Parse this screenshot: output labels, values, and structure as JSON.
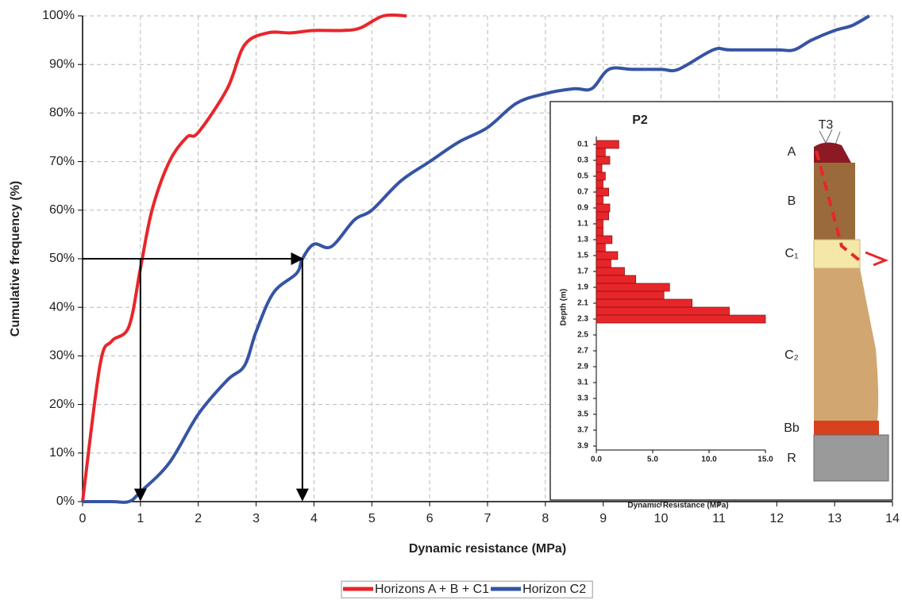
{
  "chart_data": [
    {
      "type": "line",
      "xlabel": "Dynamic resistance (MPa)",
      "ylabel": "Cumulative frequency (%)",
      "xlim": [
        0,
        14
      ],
      "ylim": [
        0,
        100
      ],
      "xticks": [
        0,
        1,
        2,
        3,
        4,
        5,
        6,
        7,
        8,
        9,
        10,
        11,
        12,
        13,
        14
      ],
      "yticks": [
        {
          "value": 0,
          "label": "0%"
        },
        {
          "value": 10,
          "label": "10%"
        },
        {
          "value": 20,
          "label": "20%"
        },
        {
          "value": 30,
          "label": "30%"
        },
        {
          "value": 40,
          "label": "40%"
        },
        {
          "value": 50,
          "label": "50%"
        },
        {
          "value": 60,
          "label": "60%"
        },
        {
          "value": 70,
          "label": "70%"
        },
        {
          "value": 80,
          "label": "80%"
        },
        {
          "value": 90,
          "label": "90%"
        },
        {
          "value": 100,
          "label": "100%"
        }
      ],
      "grid": true,
      "legend": "bottom",
      "series": [
        {
          "name": "Horizons A + B + C1",
          "color": "#e8262a",
          "x": [
            0,
            0.3,
            0.5,
            0.8,
            1,
            1.2,
            1.5,
            1.8,
            2,
            2.5,
            2.8,
            3.2,
            3.6,
            4,
            4.5,
            4.8,
            5.2,
            5.6
          ],
          "values": [
            0,
            28,
            33,
            36,
            48,
            60,
            70,
            75,
            76,
            85,
            94,
            96.5,
            96.5,
            97,
            97,
            97.5,
            100,
            100
          ]
        },
        {
          "name": "Horizon C2",
          "color": "#3654a5",
          "x": [
            0,
            0.5,
            0.8,
            1,
            1.5,
            2,
            2.5,
            2.8,
            3,
            3.3,
            3.7,
            3.8,
            4,
            4.3,
            4.7,
            5,
            5.5,
            6,
            6.5,
            7,
            7.5,
            8,
            8.5,
            8.8,
            9.1,
            9.5,
            10,
            10.3,
            10.9,
            11.2,
            12,
            12.3,
            12.6,
            13,
            13.3,
            13.6
          ],
          "values": [
            0,
            0,
            0,
            2,
            8,
            18,
            25,
            28,
            35,
            43,
            47,
            50,
            53,
            52.5,
            58,
            60,
            66,
            70,
            74,
            77,
            82,
            84,
            85,
            85,
            89,
            89,
            89,
            89,
            93,
            93,
            93,
            93,
            95,
            97,
            98,
            100
          ]
        }
      ],
      "annotations": [
        {
          "x": 1,
          "y": 50
        },
        {
          "x": 3.8,
          "y": 50
        }
      ]
    },
    {
      "type": "hbar",
      "title": "P2",
      "xlabel": "Dynamic Resistance (MPa)",
      "ylabel": "Depth (m)",
      "color": "#e8262a",
      "xlim": [
        0,
        15
      ],
      "xticks": [
        {
          "value": 0,
          "label": "0.0"
        },
        {
          "value": 5,
          "label": "5.0"
        },
        {
          "value": 10,
          "label": "10.0"
        },
        {
          "value": 15,
          "label": "15.0"
        }
      ],
      "categories": [
        "0.1",
        null,
        "0.3",
        null,
        "0.5",
        null,
        "0.7",
        null,
        "0.9",
        null,
        "1.1",
        null,
        "1.3",
        null,
        "1.5",
        null,
        "1.7",
        null,
        "1.9",
        null,
        "2.1",
        null,
        "2.3",
        null,
        "2.5",
        null,
        "2.7",
        null,
        "2.9",
        null,
        "3.1",
        null,
        "3.3",
        null,
        "3.5",
        null,
        "3.7",
        null,
        "3.9"
      ],
      "values": [
        2,
        0.8,
        1.2,
        0.5,
        0.8,
        0.6,
        1.1,
        0.6,
        1.2,
        1.1,
        0.6,
        0.6,
        1.4,
        0.8,
        1.9,
        1.3,
        2.5,
        3.5,
        6.5,
        6,
        8.5,
        11.8,
        15,
        null,
        null,
        null,
        null,
        null,
        null,
        null,
        null,
        null,
        null,
        null,
        null,
        null,
        null,
        null,
        null
      ]
    }
  ],
  "profile": {
    "title": "T3",
    "horizons": [
      "A",
      "B",
      "C₁",
      "C₂",
      "Bb",
      "R"
    ]
  }
}
